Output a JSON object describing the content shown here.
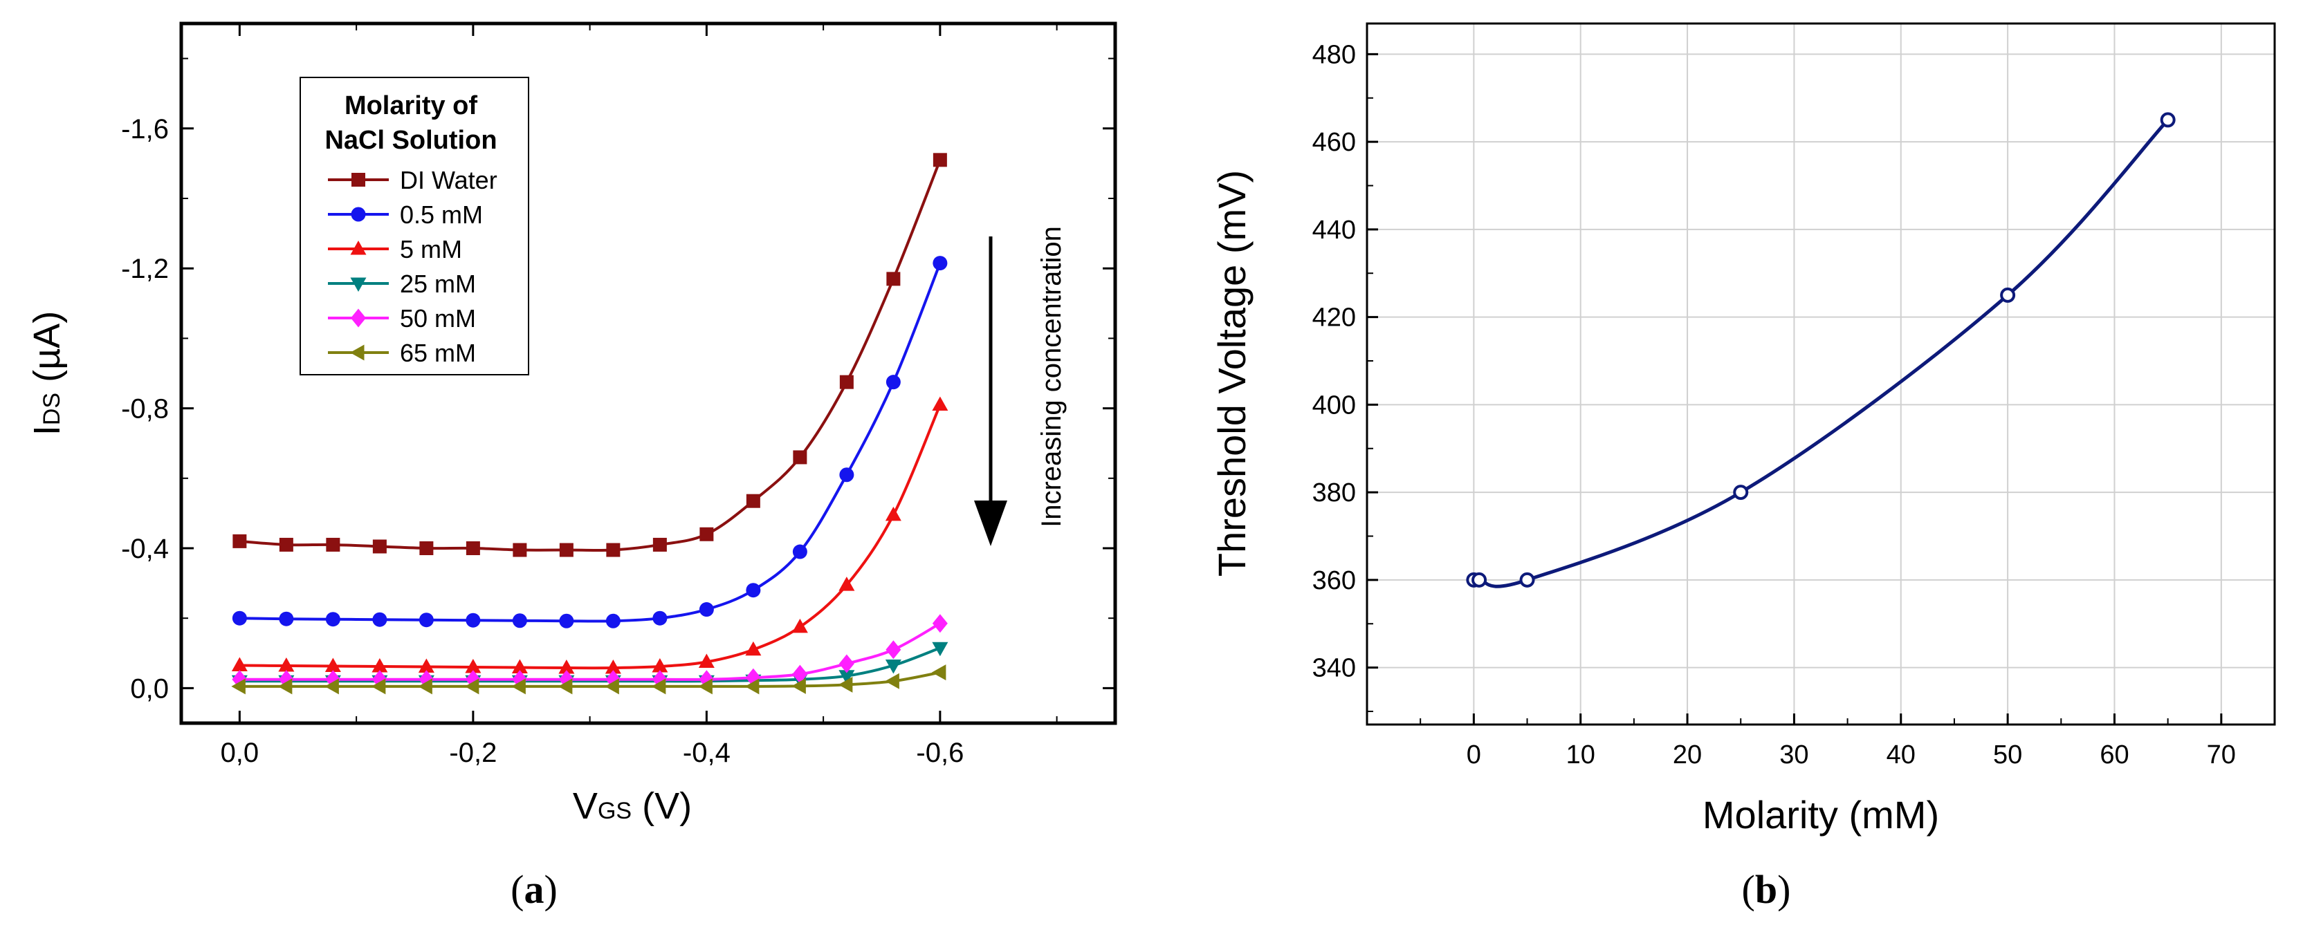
{
  "chart_data": [
    {
      "panel_label": "(a)",
      "type": "line",
      "xlabel_main": "V",
      "xlabel_sub": "GS",
      "xlabel_unit": " (V)",
      "ylabel_main": "I",
      "ylabel_sub": "DS",
      "ylabel_unit": " (µA)",
      "xlim": [
        0.05,
        -0.75
      ],
      "ylim": [
        0.1,
        -1.9
      ],
      "x_ticks": [
        {
          "value": 0.0,
          "label": "0,0"
        },
        {
          "value": -0.2,
          "label": "-0,2"
        },
        {
          "value": -0.4,
          "label": "-0,4"
        },
        {
          "value": -0.6,
          "label": "-0,6"
        }
      ],
      "y_ticks": [
        {
          "value": 0.0,
          "label": "0,0"
        },
        {
          "value": -0.4,
          "label": "-0,4"
        },
        {
          "value": -0.8,
          "label": "-0,8"
        },
        {
          "value": -1.2,
          "label": "-1,2"
        },
        {
          "value": -1.6,
          "label": "-1,6"
        }
      ],
      "legend_title_line1": "Molarity of",
      "legend_title_line2": "NaCl Solution",
      "annotation": "Increasing concentration",
      "x": [
        0.0,
        -0.04,
        -0.08,
        -0.12,
        -0.16,
        -0.2,
        -0.24,
        -0.28,
        -0.32,
        -0.36,
        -0.4,
        -0.44,
        -0.48,
        -0.52,
        -0.56,
        -0.6
      ],
      "series": [
        {
          "name": "DI Water",
          "color": "#8b1010",
          "marker": "square",
          "values": [
            -0.42,
            -0.41,
            -0.41,
            -0.405,
            -0.4,
            -0.4,
            -0.395,
            -0.395,
            -0.395,
            -0.41,
            -0.44,
            -0.535,
            -0.66,
            -0.875,
            -1.17,
            -1.51
          ]
        },
        {
          "name": "0.5 mM",
          "color": "#1515ee",
          "marker": "circle",
          "values": [
            -0.2,
            -0.198,
            -0.197,
            -0.196,
            -0.195,
            -0.194,
            -0.193,
            -0.192,
            -0.192,
            -0.2,
            -0.225,
            -0.28,
            -0.39,
            -0.61,
            -0.875,
            -1.215
          ]
        },
        {
          "name": "5 mM",
          "color": "#ee1111",
          "marker": "triangle-up",
          "values": [
            -0.065,
            -0.064,
            -0.063,
            -0.062,
            -0.061,
            -0.06,
            -0.059,
            -0.058,
            -0.058,
            -0.062,
            -0.075,
            -0.11,
            -0.175,
            -0.295,
            -0.495,
            -0.81
          ]
        },
        {
          "name": "25 mM",
          "color": "#008080",
          "marker": "triangle-down",
          "values": [
            -0.02,
            -0.02,
            -0.02,
            -0.02,
            -0.02,
            -0.02,
            -0.02,
            -0.02,
            -0.02,
            -0.02,
            -0.02,
            -0.022,
            -0.025,
            -0.035,
            -0.065,
            -0.115
          ]
        },
        {
          "name": "50 mM",
          "color": "#ff20ff",
          "marker": "diamond",
          "values": [
            -0.025,
            -0.025,
            -0.025,
            -0.025,
            -0.025,
            -0.025,
            -0.025,
            -0.025,
            -0.025,
            -0.025,
            -0.025,
            -0.03,
            -0.04,
            -0.07,
            -0.11,
            -0.185
          ]
        },
        {
          "name": "65 mM",
          "color": "#808010",
          "marker": "triangle-left",
          "values": [
            -0.005,
            -0.005,
            -0.005,
            -0.005,
            -0.005,
            -0.005,
            -0.005,
            -0.005,
            -0.005,
            -0.005,
            -0.005,
            -0.005,
            -0.006,
            -0.01,
            -0.02,
            -0.045
          ]
        }
      ]
    },
    {
      "panel_label": "(b)",
      "type": "line",
      "xlabel": "Molarity (mM)",
      "ylabel": "Threshold Voltage (mV)",
      "xlim": [
        -10,
        75
      ],
      "ylim": [
        327,
        487
      ],
      "grid": true,
      "x_ticks": [
        0,
        10,
        20,
        30,
        40,
        50,
        60,
        70
      ],
      "y_ticks": [
        340,
        360,
        380,
        400,
        420,
        440,
        460,
        480
      ],
      "color": "#0d1a7a",
      "x": [
        0,
        0.5,
        5,
        25,
        50,
        65
      ],
      "values": [
        360,
        360,
        360,
        380,
        425,
        465
      ]
    }
  ]
}
